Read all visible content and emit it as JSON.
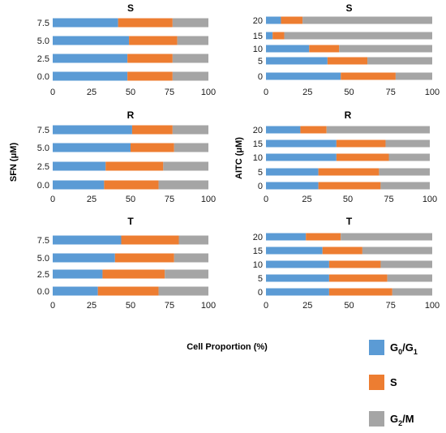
{
  "figure": {
    "xlabel": "Cell Proportion (%)",
    "ylabel_left": "SFN (μM)",
    "ylabel_right": "AITC (μM)"
  },
  "legend": [
    {
      "key": "g0g1",
      "main": "G",
      "sub1": "0",
      "mid": "/G",
      "sub2": "1",
      "color": "#5b9bd5"
    },
    {
      "key": "s",
      "main": "S",
      "sub1": "",
      "mid": "",
      "sub2": "",
      "color": "#ed7d31"
    },
    {
      "key": "g2m",
      "main": "G",
      "sub1": "2",
      "mid": "/M",
      "sub2": "",
      "color": "#a5a5a5"
    }
  ],
  "chart_data": [
    {
      "type": "bar",
      "orientation": "horizontal",
      "stacked": true,
      "title": "S",
      "column": "SFN",
      "categories": [
        "0.0",
        "2.5",
        "5.0",
        "7.5"
      ],
      "xlim": [
        0,
        100
      ],
      "xticks": [
        0,
        25,
        50,
        75,
        100
      ],
      "series": [
        {
          "name": "G0/G1",
          "values": [
            48,
            48,
            49,
            42
          ]
        },
        {
          "name": "S",
          "values": [
            29,
            29,
            31,
            35
          ]
        },
        {
          "name": "G2/M",
          "values": [
            23,
            23,
            20,
            23
          ]
        }
      ]
    },
    {
      "type": "bar",
      "orientation": "horizontal",
      "stacked": true,
      "title": "S",
      "column": "AITC",
      "categories": [
        "0",
        "5",
        "10",
        "15",
        "20"
      ],
      "xlim": [
        0,
        100
      ],
      "xticks": [
        0,
        25,
        50,
        75,
        100
      ],
      "series": [
        {
          "name": "G0/G1",
          "values": [
            45,
            37,
            26,
            4,
            9
          ]
        },
        {
          "name": "S",
          "values": [
            33,
            24,
            18,
            7,
            13
          ]
        },
        {
          "name": "G2/M",
          "values": [
            22,
            39,
            56,
            89,
            78
          ]
        }
      ]
    },
    {
      "type": "bar",
      "orientation": "horizontal",
      "stacked": true,
      "title": "R",
      "column": "SFN",
      "categories": [
        "0.0",
        "2.5",
        "5.0",
        "7.5"
      ],
      "xlim": [
        0,
        100
      ],
      "xticks": [
        0,
        25,
        50,
        75,
        100
      ],
      "series": [
        {
          "name": "G0/G1",
          "values": [
            33,
            34,
            50,
            51
          ]
        },
        {
          "name": "S",
          "values": [
            35,
            37,
            28,
            26
          ]
        },
        {
          "name": "G2/M",
          "values": [
            32,
            29,
            22,
            23
          ]
        }
      ]
    },
    {
      "type": "bar",
      "orientation": "horizontal",
      "stacked": true,
      "title": "R",
      "column": "AITC",
      "categories": [
        "0",
        "5",
        "10",
        "15",
        "20"
      ],
      "xlim": [
        0,
        100
      ],
      "xticks": [
        0,
        25,
        50,
        75,
        100
      ],
      "series": [
        {
          "name": "G0/G1",
          "values": [
            32,
            32,
            43,
            43,
            21
          ]
        },
        {
          "name": "S",
          "values": [
            38,
            37,
            32,
            30,
            16
          ]
        },
        {
          "name": "G2/M",
          "values": [
            30,
            31,
            25,
            27,
            63
          ]
        }
      ]
    },
    {
      "type": "bar",
      "orientation": "horizontal",
      "stacked": true,
      "title": "T",
      "column": "SFN",
      "categories": [
        "0.0",
        "2.5",
        "5.0",
        "7.5"
      ],
      "xlim": [
        0,
        100
      ],
      "xticks": [
        0,
        25,
        50,
        75,
        100
      ],
      "series": [
        {
          "name": "G0/G1",
          "values": [
            29,
            32,
            40,
            44
          ]
        },
        {
          "name": "S",
          "values": [
            39,
            40,
            38,
            37
          ]
        },
        {
          "name": "G2/M",
          "values": [
            32,
            28,
            22,
            19
          ]
        }
      ]
    },
    {
      "type": "bar",
      "orientation": "horizontal",
      "stacked": true,
      "title": "T",
      "column": "AITC",
      "categories": [
        "0",
        "5",
        "10",
        "15",
        "20"
      ],
      "xlim": [
        0,
        100
      ],
      "xticks": [
        0,
        25,
        50,
        75,
        100
      ],
      "series": [
        {
          "name": "G0/G1",
          "values": [
            38,
            38,
            38,
            34,
            24
          ]
        },
        {
          "name": "S",
          "values": [
            38,
            35,
            31,
            24,
            21
          ]
        },
        {
          "name": "G2/M",
          "values": [
            24,
            27,
            31,
            42,
            55
          ]
        }
      ]
    }
  ]
}
